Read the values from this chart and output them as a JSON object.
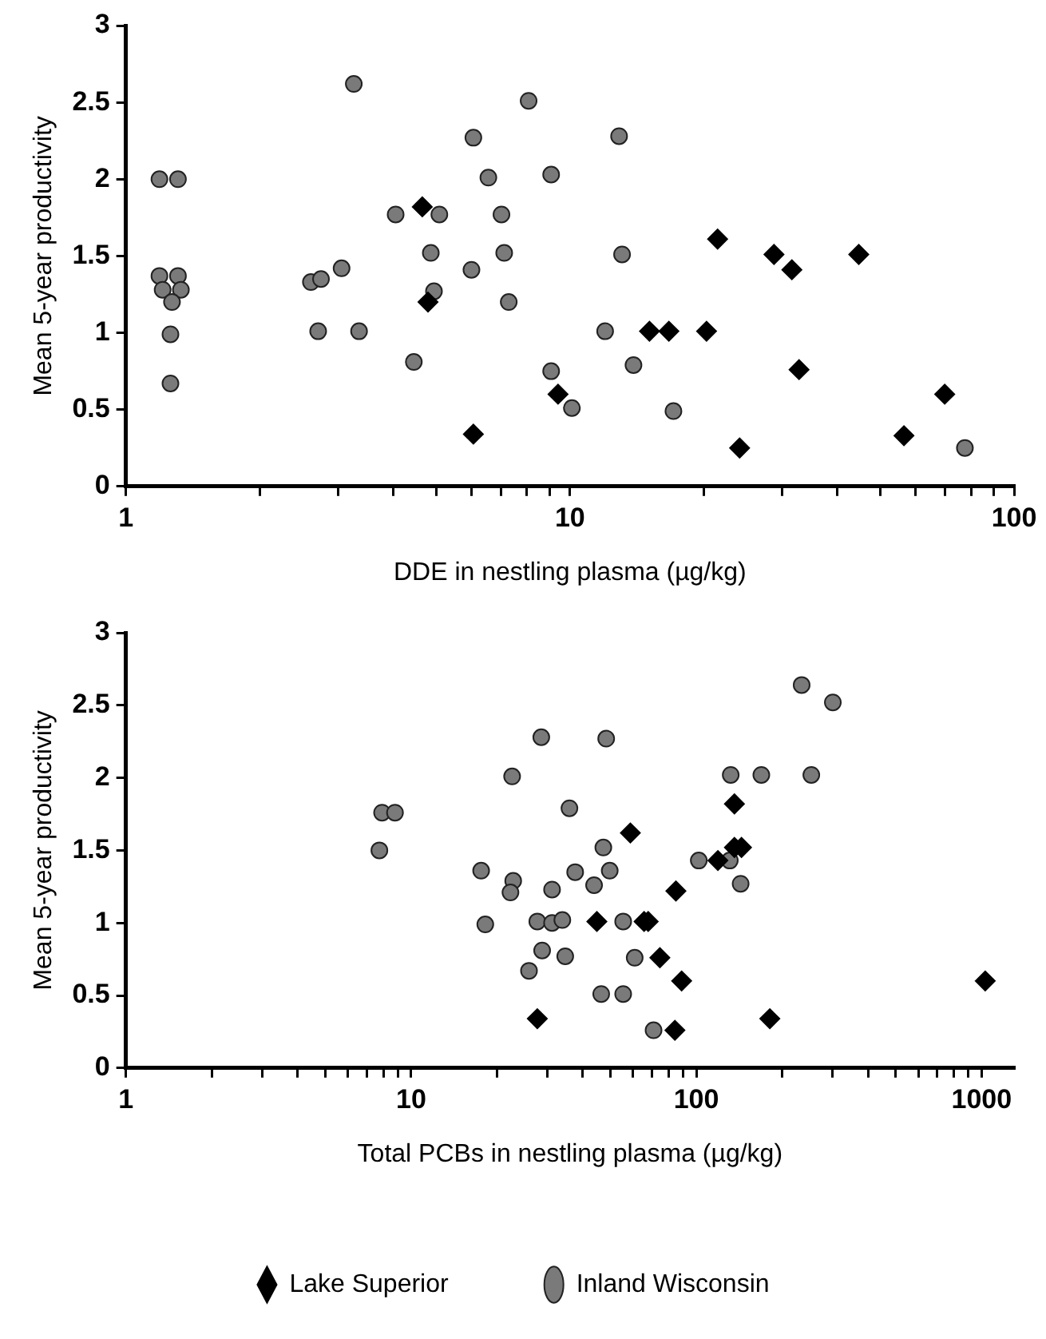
{
  "chart_data": [
    {
      "type": "scatter",
      "xlabel": "DDE in nestling plasma (µg/kg)",
      "ylabel": "Mean 5-year productivity",
      "log": "x",
      "grid": false,
      "legend": false,
      "xlim": [
        1,
        100
      ],
      "xticks": [
        1,
        {
          "value": 2,
          "label": null
        },
        {
          "value": 3,
          "label": null
        },
        {
          "value": 4,
          "label": null
        },
        {
          "value": 5,
          "label": null
        },
        {
          "value": 6,
          "label": null
        },
        {
          "value": 7,
          "label": null
        },
        {
          "value": 8,
          "label": null
        },
        {
          "value": 9,
          "label": null
        },
        10,
        {
          "value": 20,
          "label": null
        },
        {
          "value": 30,
          "label": null
        },
        {
          "value": 40,
          "label": null
        },
        {
          "value": 50,
          "label": null
        },
        {
          "value": 60,
          "label": null
        },
        {
          "value": 70,
          "label": null
        },
        {
          "value": 80,
          "label": null
        },
        {
          "value": 90,
          "label": null
        },
        100
      ],
      "ylim": [
        0,
        3
      ],
      "yticks": [
        0,
        0.5,
        1,
        1.5,
        2,
        2.5,
        3
      ],
      "series": [
        {
          "color": "#000000",
          "marker": "diamond",
          "x": [
            4.65,
            4.79,
            6.06,
            9.4,
            15.1,
            16.7,
            20.3,
            21.5,
            24.1,
            28.8,
            31.6,
            32.8,
            44.7,
            56.5,
            69.8
          ],
          "values": [
            1.82,
            1.2,
            0.34,
            0.6,
            1.01,
            1.01,
            1.01,
            1.61,
            0.25,
            1.51,
            1.41,
            0.76,
            1.51,
            0.33,
            0.6
          ]
        },
        {
          "color": "#7a7a7a",
          "marker": "circle",
          "x": [
            1.19,
            1.31,
            1.19,
            1.31,
            1.21,
            1.33,
            1.27,
            1.26,
            1.26,
            2.61,
            2.75,
            2.71,
            3.06,
            3.26,
            3.35,
            4.05,
            4.45,
            4.86,
            4.94,
            5.08,
            6.0,
            6.06,
            6.55,
            7.01,
            7.11,
            7.28,
            8.07,
            9.07,
            9.07,
            10.1,
            12.0,
            12.9,
            13.1,
            13.9,
            17.1,
            77.5
          ],
          "values": [
            2.0,
            2.0,
            1.37,
            1.37,
            1.28,
            1.28,
            1.2,
            0.99,
            0.67,
            1.33,
            1.35,
            1.01,
            1.42,
            2.62,
            1.01,
            1.77,
            0.81,
            1.52,
            1.27,
            1.77,
            1.41,
            2.27,
            2.01,
            1.77,
            1.52,
            1.2,
            2.51,
            2.03,
            0.75,
            0.51,
            1.01,
            2.28,
            1.51,
            0.79,
            0.49,
            0.25
          ]
        }
      ]
    },
    {
      "type": "scatter",
      "xlabel": "Total PCBs in nestling plasma (µg/kg)",
      "ylabel": "Mean 5-year productivity",
      "log": "x",
      "grid": false,
      "legend": "bottom",
      "xlim": [
        1,
        1300
      ],
      "xticks": [
        1,
        {
          "value": 2,
          "label": null
        },
        {
          "value": 3,
          "label": null
        },
        {
          "value": 4,
          "label": null
        },
        {
          "value": 5,
          "label": null
        },
        {
          "value": 6,
          "label": null
        },
        {
          "value": 7,
          "label": null
        },
        {
          "value": 8,
          "label": null
        },
        {
          "value": 9,
          "label": null
        },
        10,
        {
          "value": 20,
          "label": null
        },
        {
          "value": 30,
          "label": null
        },
        {
          "value": 40,
          "label": null
        },
        {
          "value": 50,
          "label": null
        },
        {
          "value": 60,
          "label": null
        },
        {
          "value": 70,
          "label": null
        },
        {
          "value": 80,
          "label": null
        },
        {
          "value": 90,
          "label": null
        },
        100,
        {
          "value": 200,
          "label": null
        },
        {
          "value": 300,
          "label": null
        },
        {
          "value": 400,
          "label": null
        },
        {
          "value": 500,
          "label": null
        },
        {
          "value": 600,
          "label": null
        },
        {
          "value": 700,
          "label": null
        },
        {
          "value": 800,
          "label": null
        },
        {
          "value": 900,
          "label": null
        },
        1000
      ],
      "ylim": [
        0,
        3
      ],
      "yticks": [
        0,
        0.5,
        1,
        1.5,
        2,
        2.5,
        3
      ],
      "series": [
        {
          "name": "Lake Superior",
          "color": "#000000",
          "marker": "diamond",
          "x": [
            27.7,
            44.8,
            58.7,
            65.6,
            67.8,
            74.5,
            84.1,
            84.8,
            88.8,
            119,
            136,
            144,
            136,
            181,
            1030
          ],
          "values": [
            0.34,
            1.01,
            1.62,
            1.01,
            1.01,
            0.76,
            0.26,
            1.22,
            0.6,
            1.43,
            1.52,
            1.52,
            1.82,
            0.34,
            0.6
          ]
        },
        {
          "name": "Inland Wisconsin",
          "color": "#7a7a7a",
          "marker": "circle",
          "x": [
            7.74,
            7.91,
            8.78,
            17.6,
            18.2,
            22.6,
            22.8,
            22.3,
            25.9,
            27.7,
            28.6,
            28.8,
            31.2,
            33.9,
            34.7,
            31.2,
            35.9,
            37.6,
            43.8,
            49.7,
            47.2,
            48.3,
            46.4,
            55.4,
            55.4,
            60.8,
            70.8,
            102,
            131,
            143,
            132,
            169,
            253,
            234,
            301
          ],
          "values": [
            1.5,
            1.76,
            1.76,
            1.36,
            0.99,
            2.01,
            1.29,
            1.21,
            0.67,
            1.01,
            2.28,
            0.81,
            1.0,
            1.02,
            0.77,
            1.23,
            1.79,
            1.35,
            1.26,
            1.36,
            1.52,
            2.27,
            0.51,
            0.51,
            1.01,
            0.76,
            0.26,
            1.43,
            1.43,
            1.27,
            2.02,
            2.02,
            2.02,
            2.64,
            2.52
          ]
        }
      ]
    }
  ]
}
